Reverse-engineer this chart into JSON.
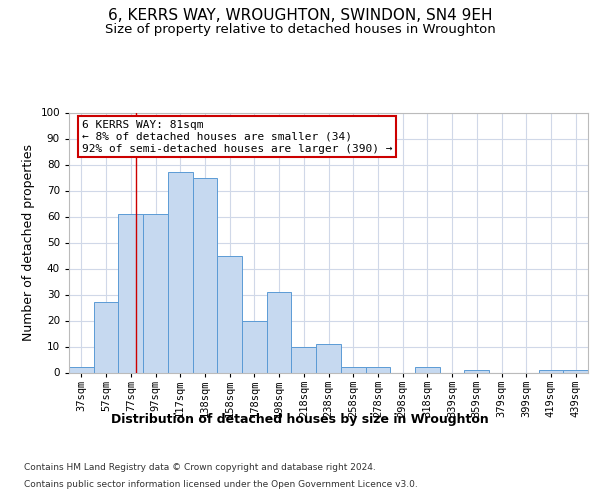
{
  "title": "6, KERRS WAY, WROUGHTON, SWINDON, SN4 9EH",
  "subtitle": "Size of property relative to detached houses in Wroughton",
  "xlabel": "Distribution of detached houses by size in Wroughton",
  "ylabel": "Number of detached properties",
  "categories": [
    "37sqm",
    "57sqm",
    "77sqm",
    "97sqm",
    "117sqm",
    "138sqm",
    "158sqm",
    "178sqm",
    "198sqm",
    "218sqm",
    "238sqm",
    "258sqm",
    "278sqm",
    "298sqm",
    "318sqm",
    "339sqm",
    "359sqm",
    "379sqm",
    "399sqm",
    "419sqm",
    "439sqm"
  ],
  "values": [
    2,
    27,
    61,
    61,
    77,
    75,
    45,
    20,
    31,
    10,
    11,
    2,
    2,
    0,
    2,
    0,
    1,
    0,
    0,
    1,
    1
  ],
  "bar_color": "#c6d9f0",
  "bar_edge_color": "#5b9bd5",
  "background_color": "#ffffff",
  "grid_color": "#d0d8e8",
  "marker_label_line1": "6 KERRS WAY: 81sqm",
  "marker_label_line2": "← 8% of detached houses are smaller (34)",
  "marker_label_line3": "92% of semi-detached houses are larger (390) →",
  "box_color": "#cc0000",
  "ylim": [
    0,
    100
  ],
  "yticks": [
    0,
    10,
    20,
    30,
    40,
    50,
    60,
    70,
    80,
    90,
    100
  ],
  "footer_line1": "Contains HM Land Registry data © Crown copyright and database right 2024.",
  "footer_line2": "Contains public sector information licensed under the Open Government Licence v3.0.",
  "title_fontsize": 11,
  "subtitle_fontsize": 9.5,
  "axis_label_fontsize": 9,
  "tick_fontsize": 7.5,
  "footer_fontsize": 6.5,
  "annotation_fontsize": 8
}
